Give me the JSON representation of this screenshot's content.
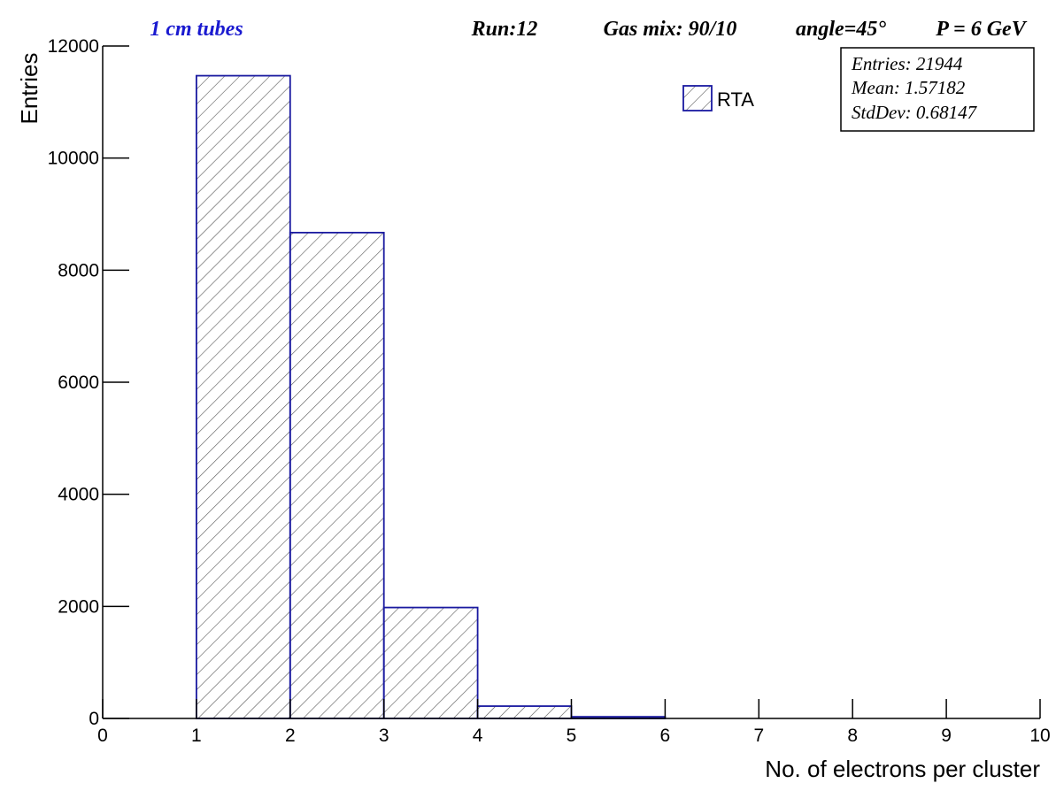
{
  "chart_data": {
    "type": "histogram",
    "header": {
      "tag": "1 cm tubes",
      "texts": [
        "Run:12",
        "Gas mix: 90/10",
        "angle=45°",
        "P = 6 GeV"
      ]
    },
    "stats": [
      "Entries: 21944",
      "Mean: 1.57182",
      "StdDev: 0.68147"
    ],
    "x_label": "No. of electrons per cluster",
    "y_label": "Entries",
    "bins": [
      0,
      1,
      2,
      3,
      4,
      5,
      6,
      7,
      8,
      9,
      10
    ],
    "series": [
      {
        "name": "RTA",
        "color": "#1a1aa0",
        "values": [
          0,
          11470,
          8670,
          1980,
          220,
          30,
          0,
          0,
          0,
          0
        ]
      }
    ],
    "xlim": [
      0,
      10
    ],
    "xticks": [
      0,
      1,
      2,
      3,
      4,
      5,
      6,
      7,
      8,
      9,
      10
    ],
    "ylim": [
      0,
      12000
    ],
    "yticks": [
      0,
      2000,
      4000,
      6000,
      8000,
      10000,
      12000
    ]
  }
}
